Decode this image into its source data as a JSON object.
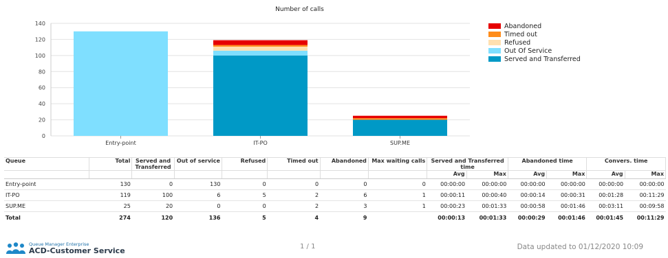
{
  "chart_data": {
    "type": "bar",
    "stacked": true,
    "title": "Number of calls",
    "categories": [
      "Entry-point",
      "IT-PO",
      "SUP.ME"
    ],
    "series": [
      {
        "name": "Served and Transferred",
        "color": "#0099c6",
        "values": [
          0,
          100,
          20
        ]
      },
      {
        "name": "Out Of Service",
        "color": "#7fdfff",
        "values": [
          130,
          6,
          0
        ]
      },
      {
        "name": "Refused",
        "color": "#ffe0b0",
        "values": [
          0,
          5,
          0
        ]
      },
      {
        "name": "Timed out",
        "color": "#ff8c1a",
        "values": [
          0,
          2,
          2
        ]
      },
      {
        "name": "Abandoned",
        "color": "#e60000",
        "values": [
          0,
          6,
          3
        ]
      }
    ],
    "yticks": [
      "0",
      "20",
      "40",
      "60",
      "80",
      "100",
      "120",
      "140"
    ],
    "ylim": [
      0,
      140
    ],
    "grid": true,
    "legend_position": "right"
  },
  "legend_order": [
    {
      "name": "Abandoned",
      "color": "#e60000"
    },
    {
      "name": "Timed out",
      "color": "#ff8c1a"
    },
    {
      "name": "Refused",
      "color": "#ffe0b0"
    },
    {
      "name": "Out Of Service",
      "color": "#7fdfff"
    },
    {
      "name": "Served and Transferred",
      "color": "#0099c6"
    }
  ],
  "table": {
    "headers": {
      "queue": "Queue",
      "total": "Total",
      "served": "Served and Transferred",
      "out_of_service": "Out of service",
      "refused": "Refused",
      "timed_out": "Timed out",
      "abandoned": "Abandoned",
      "max_wait": "Max waiting calls",
      "served_time": "Served and Transferred time",
      "abandoned_time": "Abandoned time",
      "convers_time": "Convers. time",
      "avg": "Avg",
      "max": "Max"
    },
    "rows": [
      [
        "Entry-point",
        "130",
        "0",
        "130",
        "0",
        "0",
        "0",
        "0",
        "00:00:00",
        "00:00:00",
        "00:00:00",
        "00:00:00",
        "00:00:00",
        "00:00:00"
      ],
      [
        "IT-PO",
        "119",
        "100",
        "6",
        "5",
        "2",
        "6",
        "1",
        "00:00:11",
        "00:00:40",
        "00:00:14",
        "00:00:31",
        "00:01:28",
        "00:11:29"
      ],
      [
        "SUP.ME",
        "25",
        "20",
        "0",
        "0",
        "2",
        "3",
        "1",
        "00:00:23",
        "00:01:33",
        "00:00:58",
        "00:01:46",
        "00:03:11",
        "00:09:58"
      ]
    ],
    "total": [
      "Total",
      "274",
      "120",
      "136",
      "5",
      "4",
      "9",
      "",
      "00:00:13",
      "00:01:33",
      "00:00:29",
      "00:01:46",
      "00:01:45",
      "00:11:29"
    ]
  },
  "footer": {
    "brand_line1": "Queue Manager Enterprise",
    "brand_line2": "ACD-Customer Service",
    "pager": "1 / 1",
    "updated": "Data updated to 01/12/2020 10:09"
  }
}
